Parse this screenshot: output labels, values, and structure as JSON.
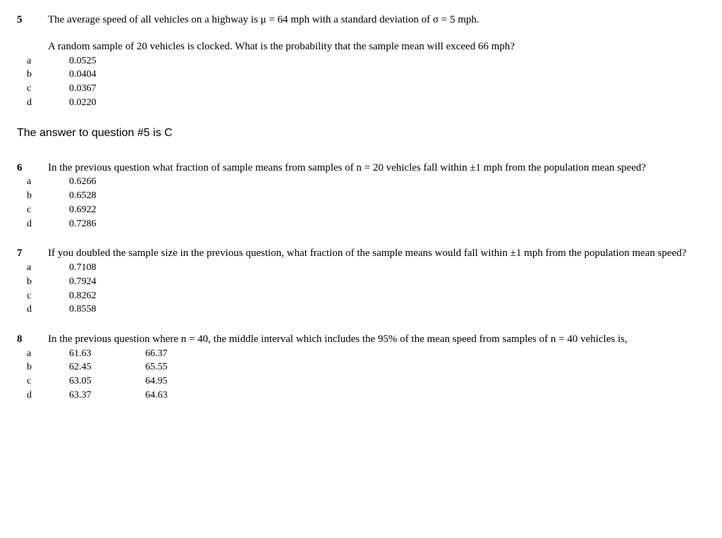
{
  "q5": {
    "number": "5",
    "text_line1": "The average speed of all vehicles on a highway is μ = 64 mph with a standard deviation of σ = 5 mph.",
    "subtext": "A random sample of 20 vehicles is clocked.  What is the probability that the sample mean will exceed 66 mph?",
    "options": {
      "a": {
        "label": "a",
        "value": "0.0525"
      },
      "b": {
        "label": "b",
        "value": "0.0404"
      },
      "c": {
        "label": "c",
        "value": "0.0367"
      },
      "d": {
        "label": "d",
        "value": "0.0220"
      }
    }
  },
  "answer5": "The answer to question #5 is C",
  "q6": {
    "number": "6",
    "text": "In the previous question what fraction of sample means from samples of n = 20 vehicles fall within ±1 mph from the population mean speed?",
    "options": {
      "a": {
        "label": "a",
        "value": "0.6266"
      },
      "b": {
        "label": "b",
        "value": "0.6528"
      },
      "c": {
        "label": "c",
        "value": "0.6922"
      },
      "d": {
        "label": "d",
        "value": "0.7286"
      }
    }
  },
  "q7": {
    "number": "7",
    "text": "If you doubled the sample size in the previous question, what fraction of the sample means would fall within ±1 mph from the population mean speed?",
    "options": {
      "a": {
        "label": "a",
        "value": "0.7108"
      },
      "b": {
        "label": "b",
        "value": "0.7924"
      },
      "c": {
        "label": "c",
        "value": "0.8262"
      },
      "d": {
        "label": "d",
        "value": "0.8558"
      }
    }
  },
  "q8": {
    "number": "8",
    "text": "In the previous question where n = 40, the middle interval which includes the 95% of the mean speed from samples of n = 40 vehicles is,",
    "options": {
      "a": {
        "label": "a",
        "v1": "61.63",
        "v2": "66.37"
      },
      "b": {
        "label": "b",
        "v1": "62.45",
        "v2": "65.55"
      },
      "c": {
        "label": "c",
        "v1": "63.05",
        "v2": "64.95"
      },
      "d": {
        "label": "d",
        "v1": "63.37",
        "v2": "64.63"
      }
    }
  }
}
